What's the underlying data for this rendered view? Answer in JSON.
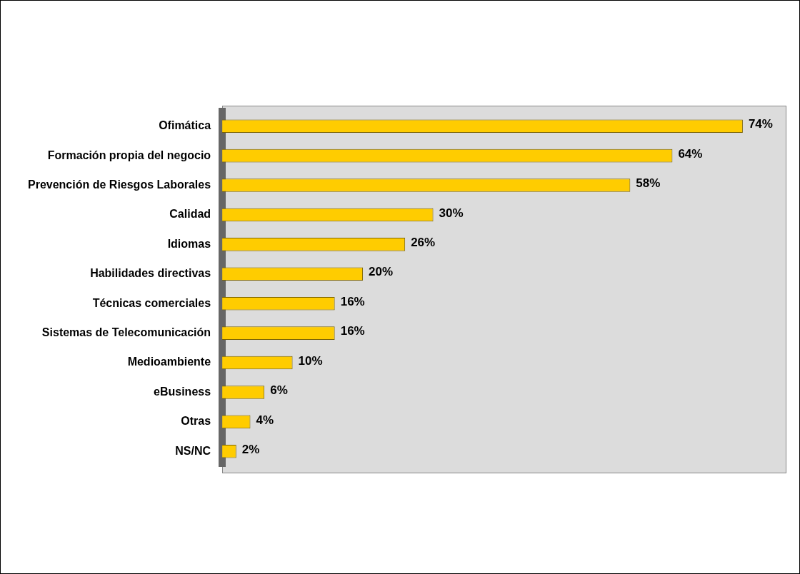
{
  "chart_data": {
    "type": "bar",
    "orientation": "horizontal",
    "categories": [
      "Ofimática",
      "Formación propia del negocio",
      "Prevención de Riesgos Laborales",
      "Calidad",
      "Idiomas",
      "Habilidades directivas",
      "Técnicas comerciales",
      "Sistemas de Telecomunicación",
      "Medioambiente",
      "eBusiness",
      "Otras",
      "NS/NC"
    ],
    "values": [
      74,
      64,
      58,
      30,
      26,
      20,
      16,
      16,
      10,
      6,
      4,
      2
    ],
    "value_labels": [
      "74%",
      "64%",
      "58%",
      "30%",
      "26%",
      "20%",
      "16%",
      "16%",
      "10%",
      "6%",
      "4%",
      "2%"
    ],
    "color": "#ffcc00",
    "legend": false
  }
}
